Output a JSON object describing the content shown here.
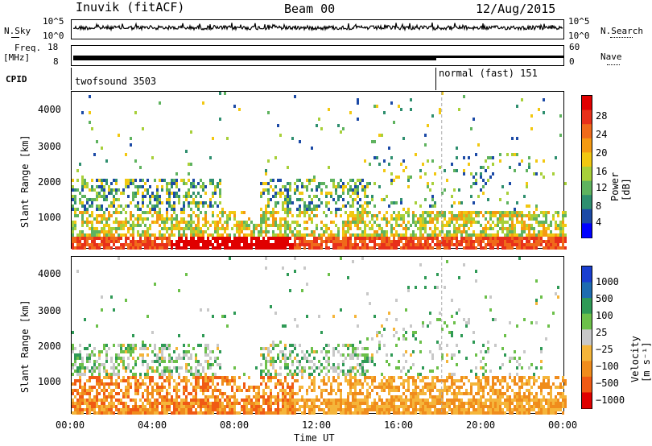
{
  "header": {
    "station": "Inuvik (fitACF)",
    "beam": "Beam 00",
    "date": "12/Aug/2015"
  },
  "noise_panel": {
    "left_label": "N.Sky",
    "right_label": "N.Search",
    "left_ticks": [
      "10^5",
      "10^0"
    ],
    "right_ticks": [
      "10^5",
      "10^0"
    ]
  },
  "freq_panel": {
    "left_label_1": "Freq.",
    "left_label_2": "[MHz]",
    "right_label": "Nave",
    "left_ticks": [
      "18",
      "8"
    ],
    "right_ticks": [
      "60",
      "0"
    ]
  },
  "cpid_panel": {
    "label": "CPID",
    "segment_1": "twofsound 3503",
    "segment_2": "normal (fast) 151",
    "switch_time_hours": 18
  },
  "chart_data": [
    {
      "type": "heatmap",
      "name": "power",
      "ylabel": "Slant Range [km]",
      "xlabel": "Time UT",
      "x_ticks": [
        "00:00",
        "04:00",
        "08:00",
        "12:00",
        "16:00",
        "20:00",
        "00:00"
      ],
      "y_ticks": [
        1000,
        2000,
        3000,
        4000
      ],
      "ylim": [
        180,
        4500
      ],
      "xlim_hours": [
        0,
        24
      ],
      "colorbar_label": "Power [dB]",
      "colorbar_ticks": [
        4,
        8,
        12,
        16,
        20,
        24,
        28
      ],
      "colorbar_range": [
        0,
        30
      ]
    },
    {
      "type": "heatmap",
      "name": "velocity",
      "ylabel": "Slant Range [km]",
      "xlabel": "Time UT",
      "x_ticks": [
        "00:00",
        "04:00",
        "08:00",
        "12:00",
        "16:00",
        "20:00",
        "00:00"
      ],
      "y_ticks": [
        1000,
        2000,
        3000,
        4000
      ],
      "ylim": [
        180,
        4500
      ],
      "xlim_hours": [
        0,
        24
      ],
      "colorbar_label": "Velocity [m s⁻¹]",
      "colorbar_ticks": [
        "1000",
        "500",
        "100",
        "25",
        "−25",
        "−100",
        "−500",
        "−1000"
      ]
    }
  ],
  "colors": {
    "power_scale": [
      "#0000ff",
      "#1c4aa6",
      "#2f8f6f",
      "#5fb35f",
      "#a8d03a",
      "#f2c811",
      "#f59a12",
      "#f06a1a",
      "#e8301a",
      "#e00000"
    ],
    "velocity_scale": [
      "#e00000",
      "#f05a14",
      "#f08c1c",
      "#f5b53a",
      "#c8c8c8",
      "#6cc04a",
      "#2f9a56",
      "#1e6cb0",
      "#1a3fd0"
    ]
  },
  "bottom_axis_label": "Time UT"
}
